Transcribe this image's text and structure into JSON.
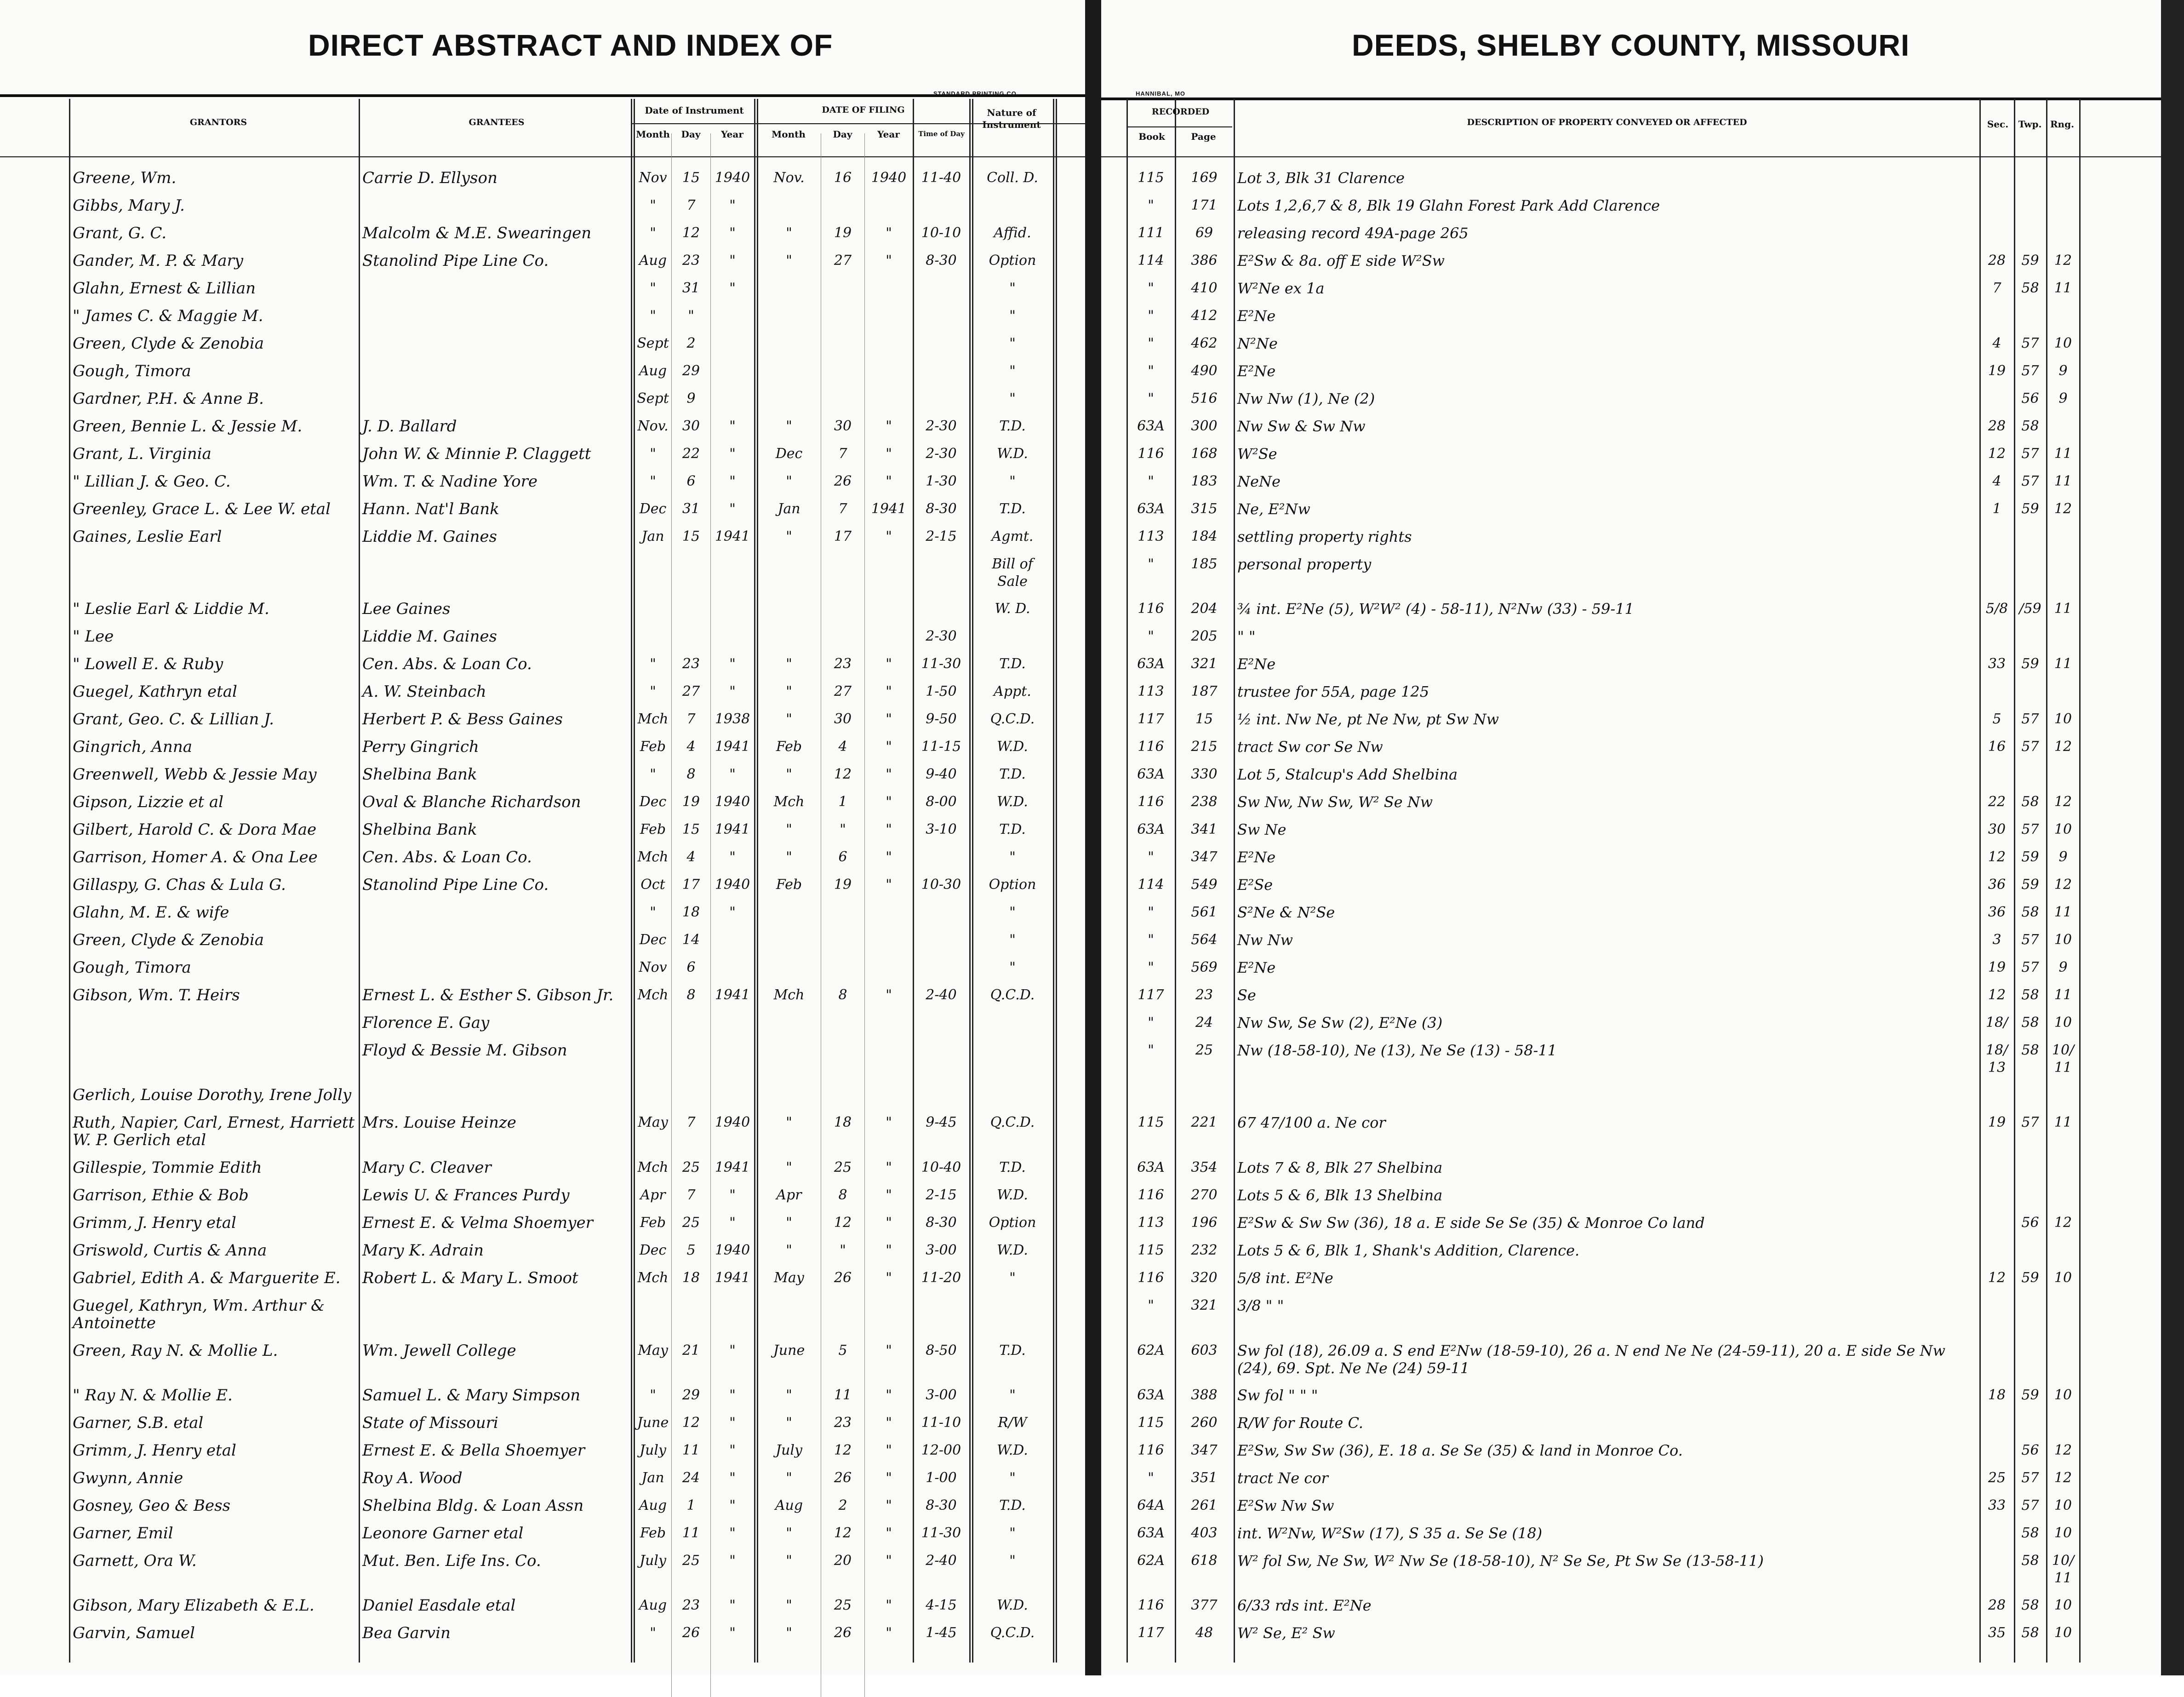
{
  "header": {
    "left_title": "DIRECT ABSTRACT AND INDEX OF",
    "right_title": "DEEDS, SHELBY COUNTY, MISSOURI",
    "left_imprint": "STANDARD PRINTING CO.",
    "right_imprint": "HANNIBAL, MO"
  },
  "columns": {
    "grantors": "Grantors",
    "grantees": "Grantees",
    "date_of_instrument": "Date of Instrument",
    "date_of_filing": "Date of Filing",
    "month": "Month",
    "day": "Day",
    "year": "Year",
    "time_of_day": "Time of Day",
    "nature": "Nature of Instrument",
    "recorded": "Recorded",
    "book": "Book",
    "page": "Page",
    "description": "Description of Property Conveyed or Affected",
    "sec": "Sec.",
    "twp": "Twp.",
    "rng": "Rng."
  },
  "rows": [
    [
      "Greene, Wm.",
      "Carrie D. Ellyson",
      "Nov",
      "15",
      "1940",
      "Nov.",
      "16",
      "1940",
      "11-40",
      "Coll. D.",
      "115",
      "169",
      "Lot 3, Blk 31 Clarence",
      "",
      "",
      ""
    ],
    [
      "Gibbs, Mary J.",
      "",
      "\"",
      "7",
      "\"",
      "",
      "",
      "",
      "",
      "",
      "\"",
      "171",
      "Lots 1,2,6,7 & 8, Blk 19 Glahn Forest Park Add Clarence",
      "",
      "",
      ""
    ],
    [
      "Grant, G. C.",
      "Malcolm & M.E. Swearingen",
      "\"",
      "12",
      "\"",
      "\"",
      "19",
      "\"",
      "10-10",
      "Affid.",
      "111",
      "69",
      "releasing record 49A-page 265",
      "",
      "",
      ""
    ],
    [
      "Gander, M. P. & Mary",
      "Stanolind Pipe Line Co.",
      "Aug",
      "23",
      "\"",
      "\"",
      "27",
      "\"",
      "8-30",
      "Option",
      "114",
      "386",
      "E²Sw & 8a. off E side W²Sw",
      "28",
      "59",
      "12"
    ],
    [
      "Glahn, Ernest & Lillian",
      "",
      "\"",
      "31",
      "\"",
      "",
      "",
      "",
      "",
      "\"",
      "\"",
      "410",
      "W²Ne ex 1a",
      "7",
      "58",
      "11"
    ],
    [
      "\" James C. & Maggie M.",
      "",
      "\"",
      "\"",
      "",
      "",
      "",
      "",
      "",
      "\"",
      "\"",
      "412",
      "E²Ne",
      "",
      "",
      ""
    ],
    [
      "Green, Clyde & Zenobia",
      "",
      "Sept",
      "2",
      "",
      "",
      "",
      "",
      "",
      "\"",
      "\"",
      "462",
      "N²Ne",
      "4",
      "57",
      "10"
    ],
    [
      "Gough, Timora",
      "",
      "Aug",
      "29",
      "",
      "",
      "",
      "",
      "",
      "\"",
      "\"",
      "490",
      "E²Ne",
      "19",
      "57",
      "9"
    ],
    [
      "Gardner, P.H. & Anne B.",
      "",
      "Sept",
      "9",
      "",
      "",
      "",
      "",
      "",
      "\"",
      "\"",
      "516",
      "Nw Nw (1), Ne (2)",
      "",
      "56",
      "9"
    ],
    [
      "Green, Bennie L. & Jessie M.",
      "J. D. Ballard",
      "Nov.",
      "30",
      "\"",
      "\"",
      "30",
      "\"",
      "2-30",
      "T.D.",
      "63A",
      "300",
      "Nw Sw & Sw Nw",
      "28",
      "58",
      ""
    ],
    [
      "Grant, L. Virginia",
      "John W. & Minnie P. Claggett",
      "\"",
      "22",
      "\"",
      "Dec",
      "7",
      "\"",
      "2-30",
      "W.D.",
      "116",
      "168",
      "W²Se",
      "12",
      "57",
      "11"
    ],
    [
      "\" Lillian J. & Geo. C.",
      "Wm. T. & Nadine Yore",
      "\"",
      "6",
      "\"",
      "\"",
      "26",
      "\"",
      "1-30",
      "\"",
      "\"",
      "183",
      "NeNe",
      "4",
      "57",
      "11"
    ],
    [
      "Greenley, Grace L. & Lee W. etal",
      "Hann. Nat'l Bank",
      "Dec",
      "31",
      "\"",
      "Jan",
      "7",
      "1941",
      "8-30",
      "T.D.",
      "63A",
      "315",
      "Ne, E²Nw",
      "1",
      "59",
      "12"
    ],
    [
      "Gaines, Leslie Earl",
      "Liddie M. Gaines",
      "Jan",
      "15",
      "1941",
      "\"",
      "17",
      "\"",
      "2-15",
      "Agmt.",
      "113",
      "184",
      "settling property rights",
      "",
      "",
      ""
    ],
    [
      "",
      "",
      "",
      "",
      "",
      "",
      "",
      "",
      "",
      "Bill of Sale",
      "\"",
      "185",
      "personal property",
      "",
      "",
      ""
    ],
    [
      "\" Leslie Earl & Liddie M.",
      "Lee Gaines",
      "",
      "",
      "",
      "",
      "",
      "",
      "",
      "W. D.",
      "116",
      "204",
      "¾ int. E²Ne (5), W²W² (4) - 58-11), N²Nw (33) - 59-11",
      "5/8",
      "/59",
      "11"
    ],
    [
      "\" Lee",
      "Liddie M. Gaines",
      "",
      "",
      "",
      "",
      "",
      "",
      "2-30",
      "",
      "\"",
      "205",
      "\"   \"",
      "",
      "",
      ""
    ],
    [
      "\" Lowell E. & Ruby",
      "Cen. Abs. & Loan Co.",
      "\"",
      "23",
      "\"",
      "\"",
      "23",
      "\"",
      "11-30",
      "T.D.",
      "63A",
      "321",
      "E²Ne",
      "33",
      "59",
      "11"
    ],
    [
      "Guegel, Kathryn etal",
      "A. W. Steinbach",
      "\"",
      "27",
      "\"",
      "\"",
      "27",
      "\"",
      "1-50",
      "Appt.",
      "113",
      "187",
      "trustee for 55A, page 125",
      "",
      "",
      ""
    ],
    [
      "Grant, Geo. C. & Lillian J.",
      "Herbert P. & Bess Gaines",
      "Mch",
      "7",
      "1938",
      "\"",
      "30",
      "\"",
      "9-50",
      "Q.C.D.",
      "117",
      "15",
      "½ int. Nw Ne, pt Ne Nw, pt Sw Nw",
      "5",
      "57",
      "10"
    ],
    [
      "Gingrich, Anna",
      "Perry Gingrich",
      "Feb",
      "4",
      "1941",
      "Feb",
      "4",
      "\"",
      "11-15",
      "W.D.",
      "116",
      "215",
      "tract Sw cor Se Nw",
      "16",
      "57",
      "12"
    ],
    [
      "Greenwell, Webb & Jessie May",
      "Shelbina Bank",
      "\"",
      "8",
      "\"",
      "\"",
      "12",
      "\"",
      "9-40",
      "T.D.",
      "63A",
      "330",
      "Lot 5, Stalcup's Add Shelbina",
      "",
      "",
      ""
    ],
    [
      "Gipson, Lizzie et al",
      "Oval & Blanche Richardson",
      "Dec",
      "19",
      "1940",
      "Mch",
      "1",
      "\"",
      "8-00",
      "W.D.",
      "116",
      "238",
      "Sw Nw, Nw Sw, W² Se Nw",
      "22",
      "58",
      "12"
    ],
    [
      "Gilbert, Harold C. & Dora Mae",
      "Shelbina Bank",
      "Feb",
      "15",
      "1941",
      "\"",
      "\"",
      "\"",
      "3-10",
      "T.D.",
      "63A",
      "341",
      "Sw Ne",
      "30",
      "57",
      "10"
    ],
    [
      "Garrison, Homer A. & Ona Lee",
      "Cen. Abs. & Loan Co.",
      "Mch",
      "4",
      "\"",
      "\"",
      "6",
      "\"",
      "",
      "\"",
      "\"",
      "347",
      "E²Ne",
      "12",
      "59",
      "9"
    ],
    [
      "Gillaspy, G. Chas & Lula G.",
      "Stanolind Pipe Line Co.",
      "Oct",
      "17",
      "1940",
      "Feb",
      "19",
      "\"",
      "10-30",
      "Option",
      "114",
      "549",
      "E²Se",
      "36",
      "59",
      "12"
    ],
    [
      "Glahn, M. E. & wife",
      "",
      "\"",
      "18",
      "\"",
      "",
      "",
      "",
      "",
      "\"",
      "\"",
      "561",
      "S²Ne & N²Se",
      "36",
      "58",
      "11"
    ],
    [
      "Green, Clyde & Zenobia",
      "",
      "Dec",
      "14",
      "",
      "",
      "",
      "",
      "",
      "\"",
      "\"",
      "564",
      "Nw Nw",
      "3",
      "57",
      "10"
    ],
    [
      "Gough, Timora",
      "",
      "Nov",
      "6",
      "",
      "",
      "",
      "",
      "",
      "\"",
      "\"",
      "569",
      "E²Ne",
      "19",
      "57",
      "9"
    ],
    [
      "Gibson, Wm. T. Heirs",
      "Ernest L. & Esther S. Gibson Jr.",
      "Mch",
      "8",
      "1941",
      "Mch",
      "8",
      "\"",
      "2-40",
      "Q.C.D.",
      "117",
      "23",
      "Se",
      "12",
      "58",
      "11"
    ],
    [
      "",
      "Florence E. Gay",
      "",
      "",
      "",
      "",
      "",
      "",
      "",
      "",
      "\"",
      "24",
      "Nw Sw, Se Sw (2), E²Ne (3)",
      "18/",
      "58",
      "10"
    ],
    [
      "",
      "Floyd & Bessie M. Gibson",
      "",
      "",
      "",
      "",
      "",
      "",
      "",
      "",
      "\"",
      "25",
      "Nw (18-58-10), Ne (13), Ne Se (13) - 58-11",
      "18/13",
      "58",
      "10/11"
    ],
    [
      "Gerlich, Louise Dorothy, Irene Jolly",
      "",
      "",
      "",
      "",
      "",
      "",
      "",
      "",
      "",
      "",
      "",
      "",
      "",
      "",
      ""
    ],
    [
      "Ruth, Napier, Carl, Ernest, Harriett W. P. Gerlich etal",
      "Mrs. Louise Heinze",
      "May",
      "7",
      "1940",
      "\"",
      "18",
      "\"",
      "9-45",
      "Q.C.D.",
      "115",
      "221",
      "67 47/100 a. Ne cor",
      "19",
      "57",
      "11"
    ],
    [
      "Gillespie, Tommie Edith",
      "Mary C. Cleaver",
      "Mch",
      "25",
      "1941",
      "\"",
      "25",
      "\"",
      "10-40",
      "T.D.",
      "63A",
      "354",
      "Lots 7 & 8, Blk 27 Shelbina",
      "",
      "",
      ""
    ],
    [
      "Garrison, Ethie & Bob",
      "Lewis U. & Frances Purdy",
      "Apr",
      "7",
      "\"",
      "Apr",
      "8",
      "\"",
      "2-15",
      "W.D.",
      "116",
      "270",
      "Lots 5 & 6, Blk 13 Shelbina",
      "",
      "",
      ""
    ],
    [
      "Grimm, J. Henry etal",
      "Ernest E. & Velma Shoemyer",
      "Feb",
      "25",
      "\"",
      "\"",
      "12",
      "\"",
      "8-30",
      "Option",
      "113",
      "196",
      "E²Sw & Sw Sw (36), 18 a. E side Se Se (35) & Monroe Co land",
      "",
      "56",
      "12"
    ],
    [
      "Griswold, Curtis & Anna",
      "Mary K. Adrain",
      "Dec",
      "5",
      "1940",
      "\"",
      "\"",
      "\"",
      "3-00",
      "W.D.",
      "115",
      "232",
      "Lots 5 & 6, Blk 1, Shank's Addition, Clarence.",
      "",
      "",
      ""
    ],
    [
      "Gabriel, Edith A. & Marguerite E.",
      "Robert L. & Mary L. Smoot",
      "Mch",
      "18",
      "1941",
      "May",
      "26",
      "\"",
      "11-20",
      "\"",
      "116",
      "320",
      "5/8 int. E²Ne",
      "12",
      "59",
      "10"
    ],
    [
      "Guegel, Kathryn, Wm. Arthur & Antoinette",
      "",
      "",
      "",
      "",
      "",
      "",
      "",
      "",
      "",
      "\"",
      "321",
      "3/8  \"   \"",
      "",
      "",
      ""
    ],
    [
      "Green, Ray N. & Mollie L.",
      "Wm. Jewell College",
      "May",
      "21",
      "\"",
      "June",
      "5",
      "\"",
      "8-50",
      "T.D.",
      "62A",
      "603",
      "Sw fol (18), 26.09 a. S end E²Nw (18-59-10), 26 a. N end Ne Ne (24-59-11), 20 a. E side Se Nw (24), 69. Spt. Ne Ne (24) 59-11",
      "",
      "",
      ""
    ],
    [
      "\" Ray N. & Mollie E.",
      "Samuel L. & Mary Simpson",
      "\"",
      "29",
      "\"",
      "\"",
      "11",
      "\"",
      "3-00",
      "\"",
      "63A",
      "388",
      "Sw fol  \"   \"   \"",
      "18",
      "59",
      "10"
    ],
    [
      "Garner, S.B. etal",
      "State of Missouri",
      "June",
      "12",
      "\"",
      "\"",
      "23",
      "\"",
      "11-10",
      "R/W",
      "115",
      "260",
      "R/W for Route C.",
      "",
      "",
      ""
    ],
    [
      "Grimm, J. Henry etal",
      "Ernest E. & Bella Shoemyer",
      "July",
      "11",
      "\"",
      "July",
      "12",
      "\"",
      "12-00",
      "W.D.",
      "116",
      "347",
      "E²Sw, Sw Sw (36), E. 18 a. Se Se (35) & land in Monroe Co.",
      "",
      "56",
      "12"
    ],
    [
      "Gwynn, Annie",
      "Roy A. Wood",
      "Jan",
      "24",
      "\"",
      "\"",
      "26",
      "\"",
      "1-00",
      "\"",
      "\"",
      "351",
      "tract Ne cor",
      "25",
      "57",
      "12"
    ],
    [
      "Gosney, Geo & Bess",
      "Shelbina Bldg. & Loan Assn",
      "Aug",
      "1",
      "\"",
      "Aug",
      "2",
      "\"",
      "8-30",
      "T.D.",
      "64A",
      "261",
      "E²Sw Nw Sw",
      "33",
      "57",
      "10"
    ],
    [
      "Garner, Emil",
      "Leonore Garner etal",
      "Feb",
      "11",
      "\"",
      "\"",
      "12",
      "\"",
      "11-30",
      "\"",
      "63A",
      "403",
      "int. W²Nw, W²Sw (17), S 35 a. Se Se (18)",
      "",
      "58",
      "10"
    ],
    [
      "Garnett, Ora W.",
      "Mut. Ben. Life Ins. Co.",
      "July",
      "25",
      "\"",
      "\"",
      "20",
      "\"",
      "2-40",
      "\"",
      "62A",
      "618",
      "W² fol Sw, Ne Sw, W² Nw Se (18-58-10), N² Se Se, Pt Sw Se (13-58-11)",
      "",
      "58",
      "10/11"
    ],
    [
      "Gibson, Mary Elizabeth & E.L.",
      "Daniel Easdale etal",
      "Aug",
      "23",
      "\"",
      "\"",
      "25",
      "\"",
      "4-15",
      "W.D.",
      "116",
      "377",
      "6/33 rds int. E²Ne",
      "28",
      "58",
      "10"
    ],
    [
      "Garvin, Samuel",
      "Bea Garvin",
      "\"",
      "26",
      "\"",
      "\"",
      "26",
      "\"",
      "1-45",
      "Q.C.D.",
      "117",
      "48",
      "W² Se, E² Sw",
      "35",
      "58",
      "10"
    ]
  ]
}
